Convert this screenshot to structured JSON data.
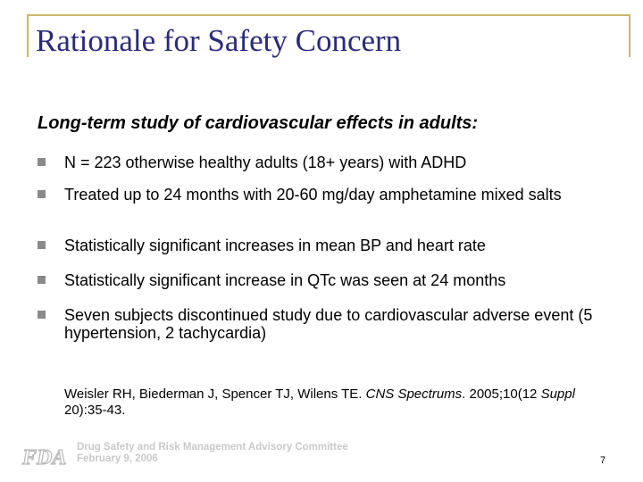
{
  "slide": {
    "title": "Rationale for Safety Concern",
    "subtitle": "Long-term study of cardiovascular effects in adults:",
    "bullets": [
      "N = 223 otherwise healthy adults (18+ years) with ADHD",
      "Treated up to 24 months with 20-60 mg/day amphetamine mixed salts",
      "Statistically significant increases in mean BP and heart rate",
      "Statistically significant increase in QTc was seen at 24 months",
      "Seven subjects discontinued study due to cardiovascular adverse event (5 hypertension, 2 tachycardia)"
    ],
    "citation": {
      "authors": "Weisler RH, Biederman J, Spencer TJ, Wilens TE.",
      "journal": "CNS Spectrums",
      "details_1": ". 2005;10(12",
      "supplement": "Suppl",
      "details_2": "20):35-43."
    },
    "footer": {
      "logo_text": "FDA",
      "line_1": "Drug Safety and Risk Management Advisory Committee",
      "line_2": "February 9, 2006"
    },
    "page_number": "7"
  },
  "colors": {
    "title": "#2b2b7a",
    "frame": "#c9b76a",
    "bullet_marker": "#8a8a8a",
    "footer_text": "#c9c9c9"
  }
}
